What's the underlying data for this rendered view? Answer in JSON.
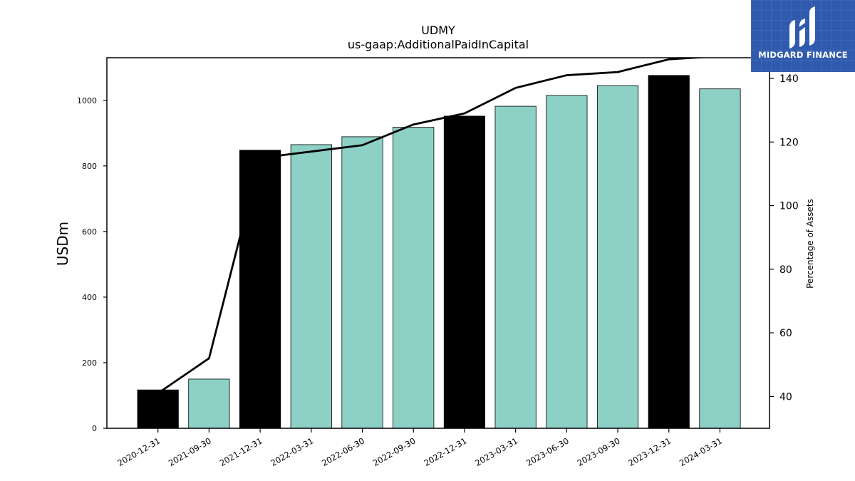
{
  "chart_data": {
    "type": "bar",
    "title": "UDMY",
    "subtitle": "us-gaap:AdditionalPaidInCapital",
    "ylabel": "USDm",
    "y2label": "Percentage of Assets",
    "categories": [
      "2020-12-31",
      "2021-09-30",
      "2021-12-31",
      "2022-03-31",
      "2022-06-30",
      "2022-09-30",
      "2022-12-31",
      "2023-03-31",
      "2023-06-30",
      "2023-09-30",
      "2023-12-31",
      "2024-03-31"
    ],
    "series": [
      {
        "values": [
          117,
          150,
          848,
          865,
          889,
          918,
          952,
          982,
          1015,
          1045,
          1076,
          1035
        ]
      },
      {
        "axis": "right",
        "values": [
          41,
          52,
          115,
          117,
          119,
          125.5,
          129,
          137,
          141,
          142,
          146,
          147
        ]
      }
    ],
    "bar_highlight": [
      true,
      false,
      true,
      false,
      false,
      false,
      true,
      false,
      false,
      false,
      true,
      false
    ],
    "ylim": [
      0,
      1130
    ],
    "y2lim": [
      30,
      146.5
    ],
    "yticks": [
      0,
      200,
      400,
      600,
      800,
      1000
    ],
    "y2ticks": [
      40,
      60,
      80,
      100,
      120,
      140
    ],
    "colors": {
      "highlight": "#000000",
      "normal": "#8dd1c6",
      "line": "#000000"
    }
  },
  "logo": {
    "text": "MIDGARD FINANCE",
    "icon": "midgard-logo-icon",
    "background": "#2f5aad"
  }
}
